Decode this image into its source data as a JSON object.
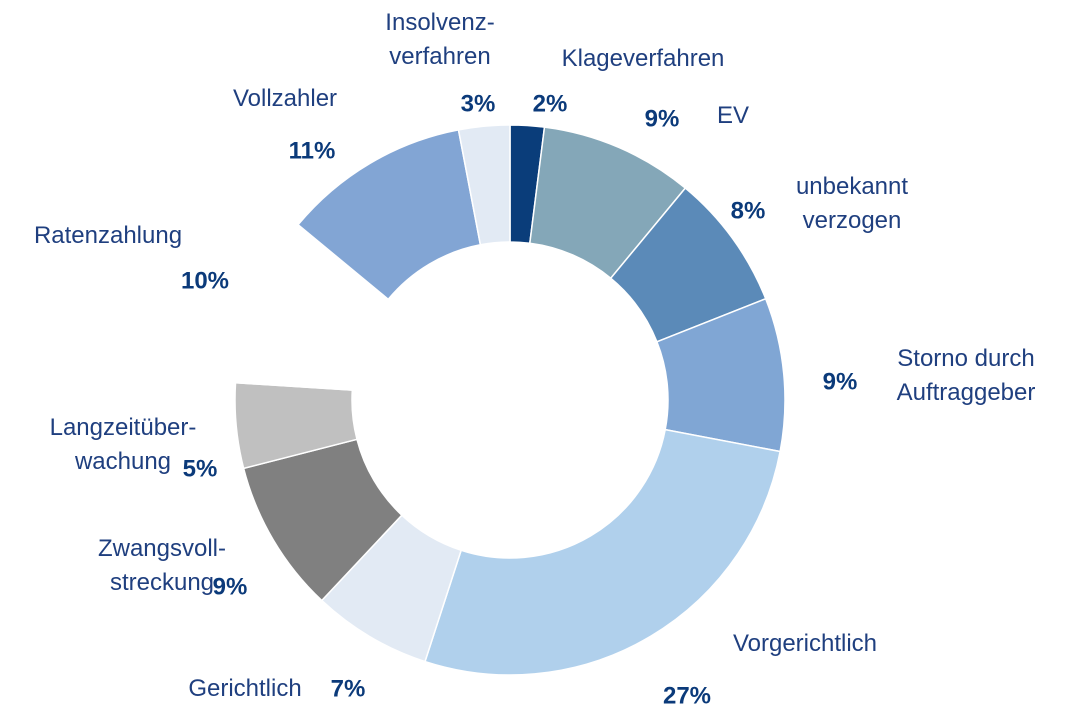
{
  "chart_data": {
    "type": "donut",
    "categories": [
      "Klageverfahren",
      "EV",
      "unbekannt\nverzogen",
      "Storno durch\nAuftraggeber",
      "Vorgerichtlich",
      "Gerichtlich",
      "Zwangsvoll-\nstreckung",
      "Langzeitüber-\nwachung",
      "Ratenzahlung",
      "Vollzahler",
      "Insolvenz-\nverfahren"
    ],
    "values": [
      2,
      9,
      8,
      9,
      27,
      7,
      9,
      5,
      10,
      11,
      3
    ],
    "value_labels": [
      "2%",
      "9%",
      "8%",
      "9%",
      "27%",
      "7%",
      "9%",
      "5%",
      "10%",
      "11%",
      "3%"
    ],
    "colors": [
      "#0a3d7a",
      "#84a7b8",
      "#5b8ab8",
      "#80a6d4",
      "#b0d0ec",
      "#e2eaf4",
      "#808080",
      "#c0c0c0",
      "#ffffff",
      "#82a5d4",
      "#e2eaf4"
    ]
  }
}
